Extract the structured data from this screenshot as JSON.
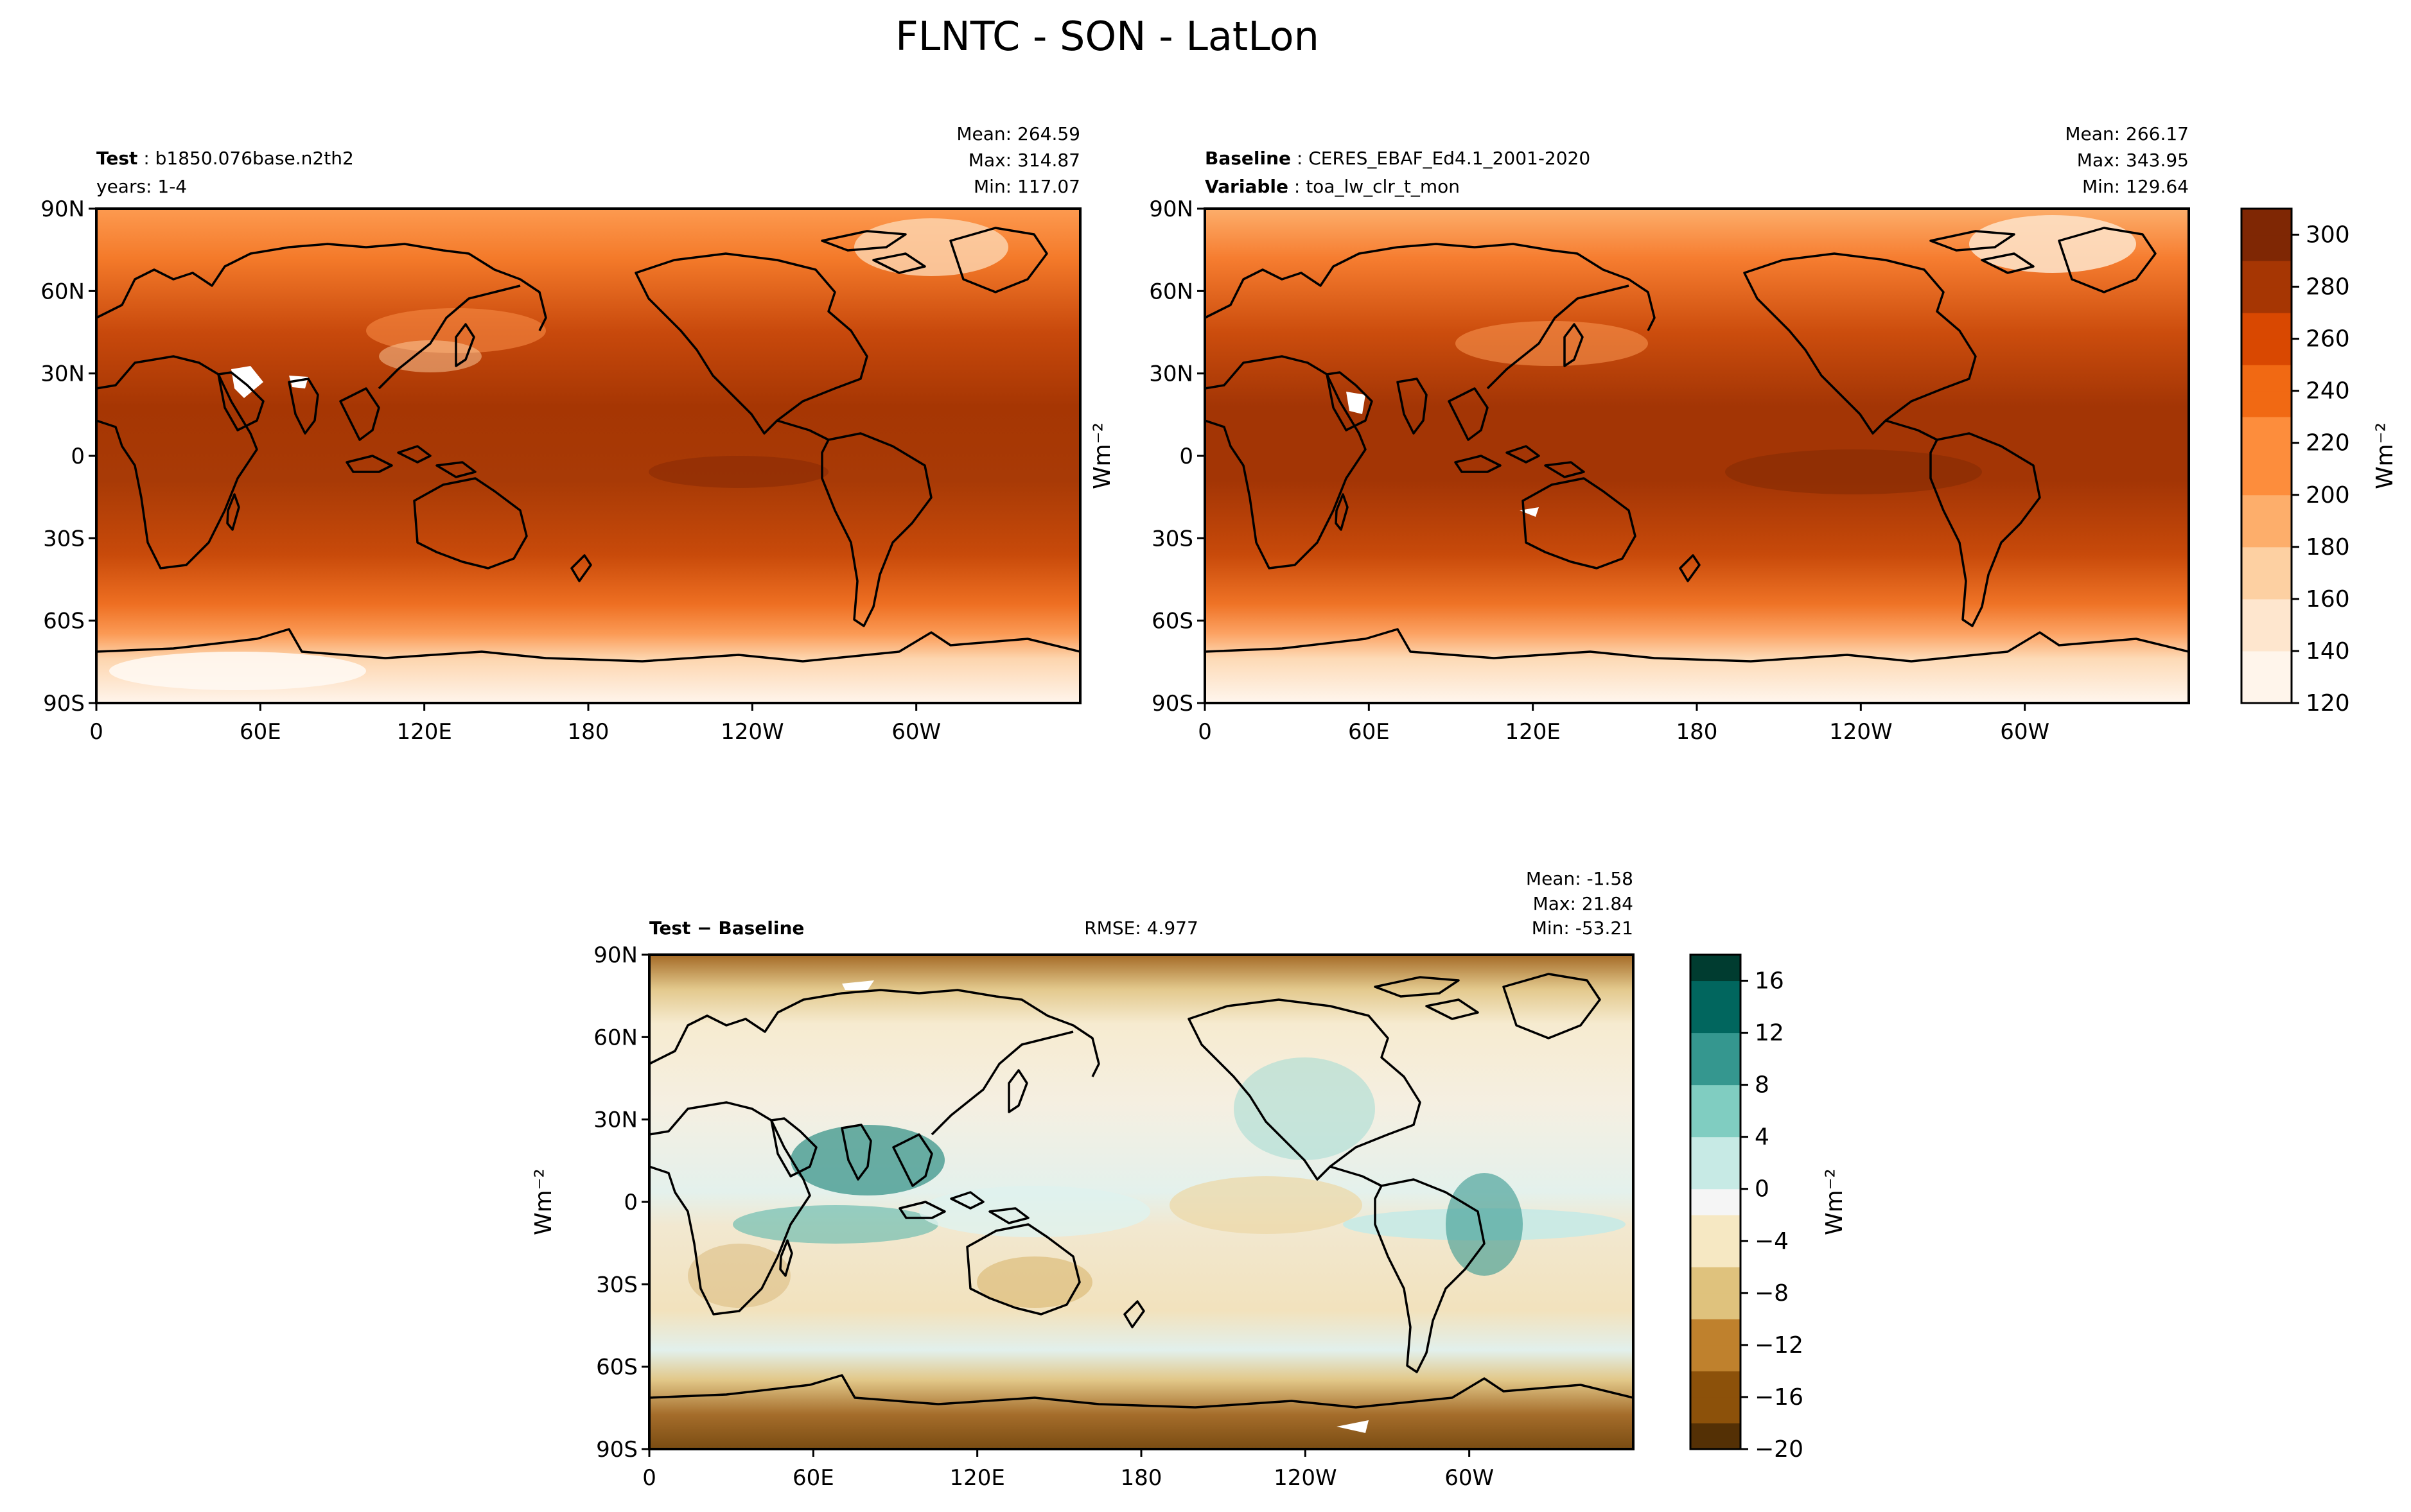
{
  "title": "FLNTC - SON - LatLon",
  "colors": {
    "test_ramp": [
      "#fff5eb",
      "#fee6ce",
      "#fdd0a2",
      "#fdae6b",
      "#fd8d3c",
      "#f16913",
      "#d94801",
      "#a63603",
      "#7f2704"
    ],
    "diff_ramp": [
      "#543005",
      "#8c510a",
      "#bf812d",
      "#dfc27d",
      "#f6e8c3",
      "#f5f5f5",
      "#c7eae5",
      "#80cdc1",
      "#35978f",
      "#01665e",
      "#003c30"
    ],
    "missing": "#ffffff",
    "coast": "#000000"
  },
  "lon_ticks": [
    "0",
    "60E",
    "120E",
    "180",
    "120W",
    "60W"
  ],
  "lat_ticks": [
    "90N",
    "60N",
    "30N",
    "0",
    "30S",
    "60S",
    "90S"
  ],
  "panels": {
    "test": {
      "label_bold": "Test",
      "name": "b1850.076base.n2th2",
      "years": "years: 1-4",
      "mean": "Mean: 264.59",
      "max": "Max: 314.87",
      "min": "Min: 117.07"
    },
    "baseline": {
      "label_bold": "Baseline",
      "name": "CERES_EBAF_Ed4.1_2001-2020",
      "variable_bold": "Variable",
      "variable": "toa_lw_clr_t_mon",
      "mean": "Mean: 266.17",
      "max": "Max: 343.95",
      "min": "Min: 129.64",
      "ylabel": "Wm⁻²"
    },
    "diff": {
      "label_bold": "Test − Baseline",
      "rmse": "RMSE: 4.977",
      "mean": "Mean: -1.58",
      "max": "Max: 21.84",
      "min": "Min: -53.21",
      "ylabel": "Wm⁻²"
    }
  },
  "colorbars": {
    "top": {
      "ticks": [
        "300",
        "280",
        "260",
        "240",
        "220",
        "200",
        "180",
        "160",
        "140",
        "120"
      ],
      "label": "Wm⁻²"
    },
    "diff": {
      "ticks": [
        "16",
        "12",
        "8",
        "4",
        "0",
        "−4",
        "−8",
        "−12",
        "−16",
        "−20"
      ],
      "label": "Wm⁻²"
    }
  },
  "chart_data": [
    {
      "type": "heatmap",
      "title": "Test : b1850.076base.n2th2",
      "subtitle": "years: 1-4",
      "x_tick_labels": [
        "0",
        "60E",
        "120E",
        "180",
        "120W",
        "60W"
      ],
      "y_tick_labels": [
        "90N",
        "60N",
        "30N",
        "0",
        "30S",
        "60S",
        "90S"
      ],
      "xlim": [
        0,
        360
      ],
      "ylim": [
        -90,
        90
      ],
      "value_range": [
        120,
        310
      ],
      "stats": {
        "mean": 264.59,
        "max": 314.87,
        "min": 117.07
      }
    },
    {
      "type": "heatmap",
      "title": "Baseline : CERES_EBAF_Ed4.1_2001-2020",
      "subtitle": "Variable : toa_lw_clr_t_mon",
      "x_tick_labels": [
        "0",
        "60E",
        "120E",
        "180",
        "120W",
        "60W"
      ],
      "y_tick_labels": [
        "90N",
        "60N",
        "30N",
        "0",
        "30S",
        "60S",
        "90S"
      ],
      "ylabel": "Wm⁻²",
      "xlim": [
        0,
        360
      ],
      "ylim": [
        -90,
        90
      ],
      "value_range": [
        120,
        310
      ],
      "colorbar_ticks": [
        120,
        140,
        160,
        180,
        200,
        220,
        240,
        260,
        280,
        300
      ],
      "stats": {
        "mean": 266.17,
        "max": 343.95,
        "min": 129.64
      }
    },
    {
      "type": "heatmap",
      "title": "Test − Baseline",
      "ylabel": "Wm⁻²",
      "xlim": [
        0,
        360
      ],
      "ylim": [
        -90,
        90
      ],
      "value_range": [
        -20,
        18
      ],
      "colorbar_ticks": [
        -20,
        -16,
        -12,
        -8,
        -4,
        0,
        4,
        8,
        12,
        16
      ],
      "stats": {
        "mean": -1.58,
        "max": 21.84,
        "min": -53.21,
        "rmse": 4.977
      }
    }
  ]
}
